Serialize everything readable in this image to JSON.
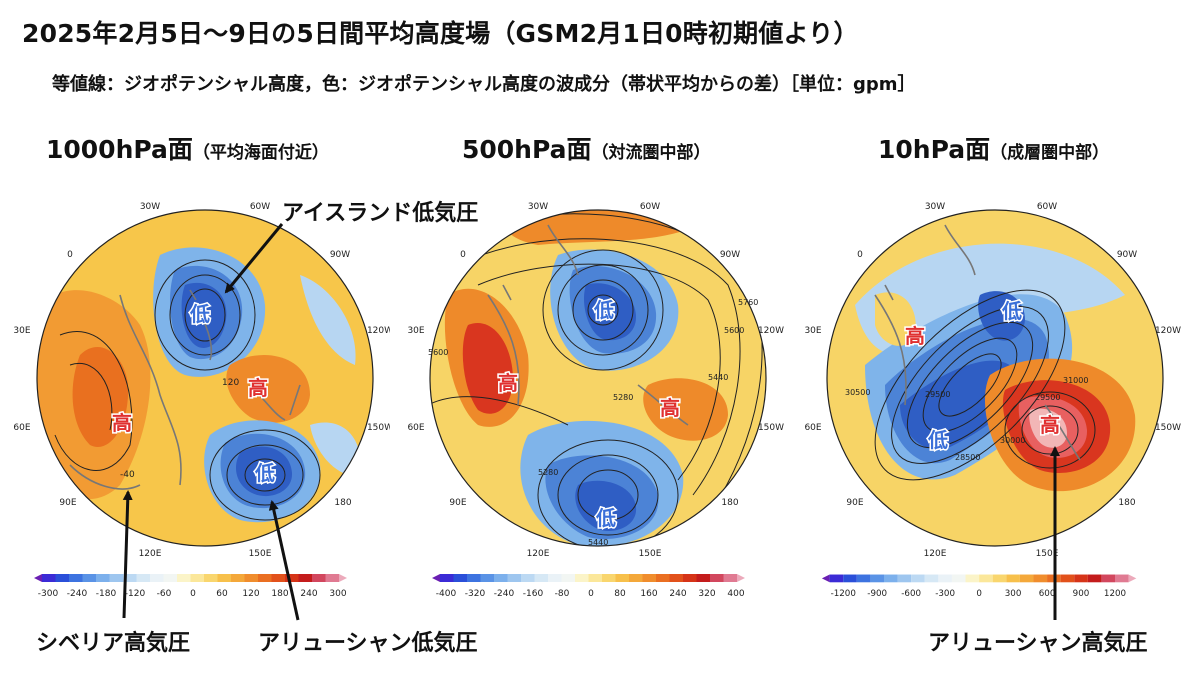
{
  "title": "2025年2月5日〜9日の5日間平均高度場（GSM2月1日0時初期値より）",
  "subtitle": "等値線：ジオポテンシャル高度，色：ジオポテンシャル高度の波成分（帯状平均からの差）［単位：gpm］",
  "panels": [
    {
      "level": "1000hPa面",
      "desc": "（平均海面付近）",
      "lon_labels": [
        "30W",
        "60W",
        "90W",
        "120W",
        "150W",
        "180",
        "150E",
        "120E",
        "90E",
        "60E",
        "30E",
        "0"
      ],
      "centers": [
        "低",
        "高",
        "高",
        "低"
      ],
      "contour_labels": [
        "120",
        "-40"
      ],
      "colorbar": [
        "-300",
        "-240",
        "-180",
        "-120",
        "-60",
        "0",
        "60",
        "120",
        "180",
        "240",
        "300"
      ]
    },
    {
      "level": "500hPa面",
      "desc": "（対流圏中部）",
      "lon_labels": [
        "30W",
        "60W",
        "90W",
        "120W",
        "150W",
        "180",
        "150E",
        "120E",
        "90E",
        "60E",
        "30E",
        "0"
      ],
      "centers": [
        "低",
        "高",
        "高",
        "低"
      ],
      "contour_labels": [
        "5760",
        "5600",
        "5440",
        "5280",
        "5600",
        "5280",
        "5440"
      ],
      "colorbar": [
        "-400",
        "-320",
        "-240",
        "-160",
        "-80",
        "0",
        "80",
        "160",
        "240",
        "320",
        "400"
      ]
    },
    {
      "level": "10hPa面",
      "desc": "（成層圏中部）",
      "lon_labels": [
        "30W",
        "60W",
        "90W",
        "120W",
        "150W",
        "180",
        "150E",
        "120E",
        "90E",
        "60E",
        "30E",
        "0"
      ],
      "centers": [
        "低",
        "高",
        "低",
        "高"
      ],
      "contour_labels": [
        "31000",
        "30500",
        "29500",
        "28500",
        "29500",
        "30000"
      ],
      "colorbar": [
        "-1200",
        "-900",
        "-600",
        "-300",
        "0",
        "300",
        "600",
        "900",
        "1200"
      ]
    }
  ],
  "callouts": {
    "iceland_low": "アイスランド低気圧",
    "siberian_high": "シベリア高気圧",
    "aleutian_low": "アリューシャン低気圧",
    "aleutian_high": "アリューシャン高気圧"
  }
}
